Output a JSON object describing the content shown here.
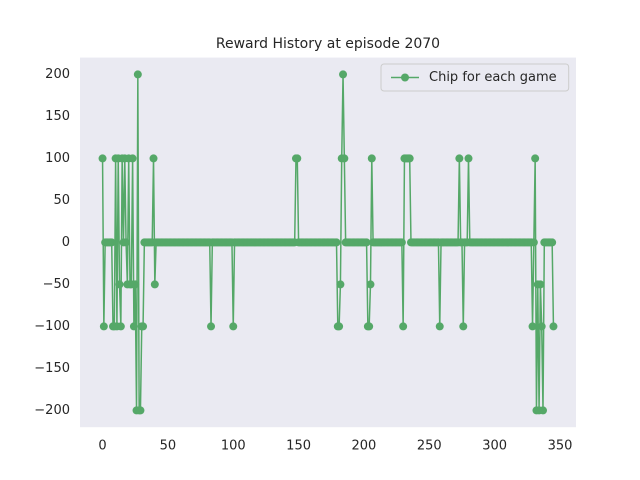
{
  "chart_data": {
    "type": "line",
    "title": "Reward History at episode 2070",
    "x": [
      0,
      1,
      2,
      3,
      4,
      5,
      6,
      7,
      8,
      9,
      10,
      11,
      12,
      13,
      14,
      15,
      16,
      17,
      18,
      19,
      20,
      21,
      22,
      23,
      24,
      25,
      26,
      27,
      28,
      29,
      30,
      31,
      32,
      33,
      34,
      35,
      36,
      37,
      38,
      39,
      40,
      41,
      42,
      43,
      44,
      45,
      46,
      47,
      48,
      49,
      50,
      51,
      52,
      53,
      54,
      55,
      56,
      57,
      58,
      59,
      60,
      61,
      62,
      63,
      64,
      65,
      66,
      67,
      68,
      69,
      70,
      71,
      72,
      73,
      74,
      75,
      76,
      77,
      78,
      79,
      80,
      81,
      82,
      83,
      84,
      85,
      86,
      87,
      88,
      89,
      90,
      91,
      92,
      93,
      94,
      95,
      96,
      97,
      98,
      99,
      100,
      101,
      102,
      103,
      104,
      105,
      106,
      107,
      108,
      109,
      110,
      111,
      112,
      113,
      114,
      115,
      116,
      117,
      118,
      119,
      120,
      121,
      122,
      123,
      124,
      125,
      126,
      127,
      128,
      129,
      130,
      131,
      132,
      133,
      134,
      135,
      136,
      137,
      138,
      139,
      140,
      141,
      142,
      143,
      144,
      145,
      146,
      147,
      148,
      149,
      150,
      151,
      152,
      153,
      154,
      155,
      156,
      157,
      158,
      159,
      160,
      161,
      162,
      163,
      164,
      165,
      166,
      167,
      168,
      169,
      170,
      171,
      172,
      173,
      174,
      175,
      176,
      177,
      178,
      179,
      180,
      181,
      182,
      183,
      184,
      185,
      186,
      187,
      188,
      189,
      190,
      191,
      192,
      193,
      194,
      195,
      196,
      197,
      198,
      199,
      200,
      201,
      202,
      203,
      204,
      205,
      206,
      207,
      208,
      209,
      210,
      211,
      212,
      213,
      214,
      215,
      216,
      217,
      218,
      219,
      220,
      221,
      222,
      223,
      224,
      225,
      226,
      227,
      228,
      229,
      230,
      231,
      232,
      233,
      234,
      235,
      236,
      237,
      238,
      239,
      240,
      241,
      242,
      243,
      244,
      245,
      246,
      247,
      248,
      249,
      250,
      251,
      252,
      253,
      254,
      255,
      256,
      257,
      258,
      259,
      260,
      261,
      262,
      263,
      264,
      265,
      266,
      267,
      268,
      269,
      270,
      271,
      272,
      273,
      274,
      275,
      276,
      277,
      278,
      279,
      280,
      281,
      282,
      283,
      284,
      285,
      286,
      287,
      288,
      289,
      290,
      291,
      292,
      293,
      294,
      295,
      296,
      297,
      298,
      299,
      300,
      301,
      302,
      303,
      304,
      305,
      306,
      307,
      308,
      309,
      310,
      311,
      312,
      313,
      314,
      315,
      316,
      317,
      318,
      319,
      320,
      321,
      322,
      323,
      324,
      325,
      326,
      327,
      328,
      329,
      330,
      331,
      332,
      333,
      334,
      335,
      336,
      337,
      338,
      339,
      340,
      341,
      342,
      343,
      344,
      345
    ],
    "series": [
      {
        "name": "Chip for each game",
        "color": "#55a868",
        "values": [
          100,
          -100,
          0,
          0,
          0,
          0,
          0,
          0,
          -100,
          -100,
          100,
          -100,
          100,
          -50,
          -100,
          100,
          0,
          100,
          0,
          -50,
          100,
          -50,
          -50,
          100,
          -100,
          -50,
          -200,
          200,
          -200,
          -200,
          -100,
          -100,
          0,
          0,
          0,
          0,
          0,
          0,
          0,
          100,
          -50,
          0,
          0,
          0,
          0,
          0,
          0,
          0,
          0,
          0,
          0,
          0,
          0,
          0,
          0,
          0,
          0,
          0,
          0,
          0,
          0,
          0,
          0,
          0,
          0,
          0,
          0,
          0,
          0,
          0,
          0,
          0,
          0,
          0,
          0,
          0,
          0,
          0,
          0,
          0,
          0,
          0,
          0,
          -100,
          0,
          0,
          0,
          0,
          0,
          0,
          0,
          0,
          0,
          0,
          0,
          0,
          0,
          0,
          0,
          0,
          -100,
          0,
          0,
          0,
          0,
          0,
          0,
          0,
          0,
          0,
          0,
          0,
          0,
          0,
          0,
          0,
          0,
          0,
          0,
          0,
          0,
          0,
          0,
          0,
          0,
          0,
          0,
          0,
          0,
          0,
          0,
          0,
          0,
          0,
          0,
          0,
          0,
          0,
          0,
          0,
          0,
          0,
          0,
          0,
          0,
          0,
          0,
          0,
          100,
          100,
          0,
          0,
          0,
          0,
          0,
          0,
          0,
          0,
          0,
          0,
          0,
          0,
          0,
          0,
          0,
          0,
          0,
          0,
          0,
          0,
          0,
          0,
          0,
          0,
          0,
          0,
          0,
          0,
          0,
          0,
          -100,
          -100,
          -50,
          100,
          200,
          100,
          0,
          0,
          0,
          0,
          0,
          0,
          0,
          0,
          0,
          0,
          0,
          0,
          0,
          0,
          0,
          0,
          0,
          -100,
          -100,
          -50,
          100,
          0,
          0,
          0,
          0,
          0,
          0,
          0,
          0,
          0,
          0,
          0,
          0,
          0,
          0,
          0,
          0,
          0,
          0,
          0,
          0,
          0,
          0,
          0,
          -100,
          100,
          100,
          100,
          100,
          100,
          0,
          0,
          0,
          0,
          0,
          0,
          0,
          0,
          0,
          0,
          0,
          0,
          0,
          0,
          0,
          0,
          0,
          0,
          0,
          0,
          0,
          0,
          -100,
          0,
          0,
          0,
          0,
          0,
          0,
          0,
          0,
          0,
          0,
          0,
          0,
          0,
          0,
          100,
          0,
          0,
          -100,
          0,
          0,
          0,
          100,
          0,
          0,
          0,
          0,
          0,
          0,
          0,
          0,
          0,
          0,
          0,
          0,
          0,
          0,
          0,
          0,
          0,
          0,
          0,
          0,
          0,
          0,
          0,
          0,
          0,
          0,
          0,
          0,
          0,
          0,
          0,
          0,
          0,
          0,
          0,
          0,
          0,
          0,
          0,
          0,
          0,
          0,
          0,
          0,
          0,
          0,
          0,
          0,
          -100,
          0,
          100,
          -200,
          -50,
          -200,
          -50,
          -100,
          -200,
          0,
          0,
          0,
          0,
          0,
          0,
          0,
          -100
        ]
      }
    ],
    "xlim": [
      -17.25,
      362.25
    ],
    "xticks": [
      0,
      50,
      100,
      150,
      200,
      250,
      300,
      350
    ],
    "ylim": [
      -220,
      220
    ],
    "yticks": [
      {
        "value": -200,
        "label": "−200"
      },
      {
        "value": -150,
        "label": "−150"
      },
      {
        "value": -100,
        "label": "−100"
      },
      {
        "value": -50,
        "label": "−50"
      },
      0,
      50,
      100,
      150,
      200
    ],
    "grid": false,
    "legend": "upper right",
    "marker": "circle"
  }
}
